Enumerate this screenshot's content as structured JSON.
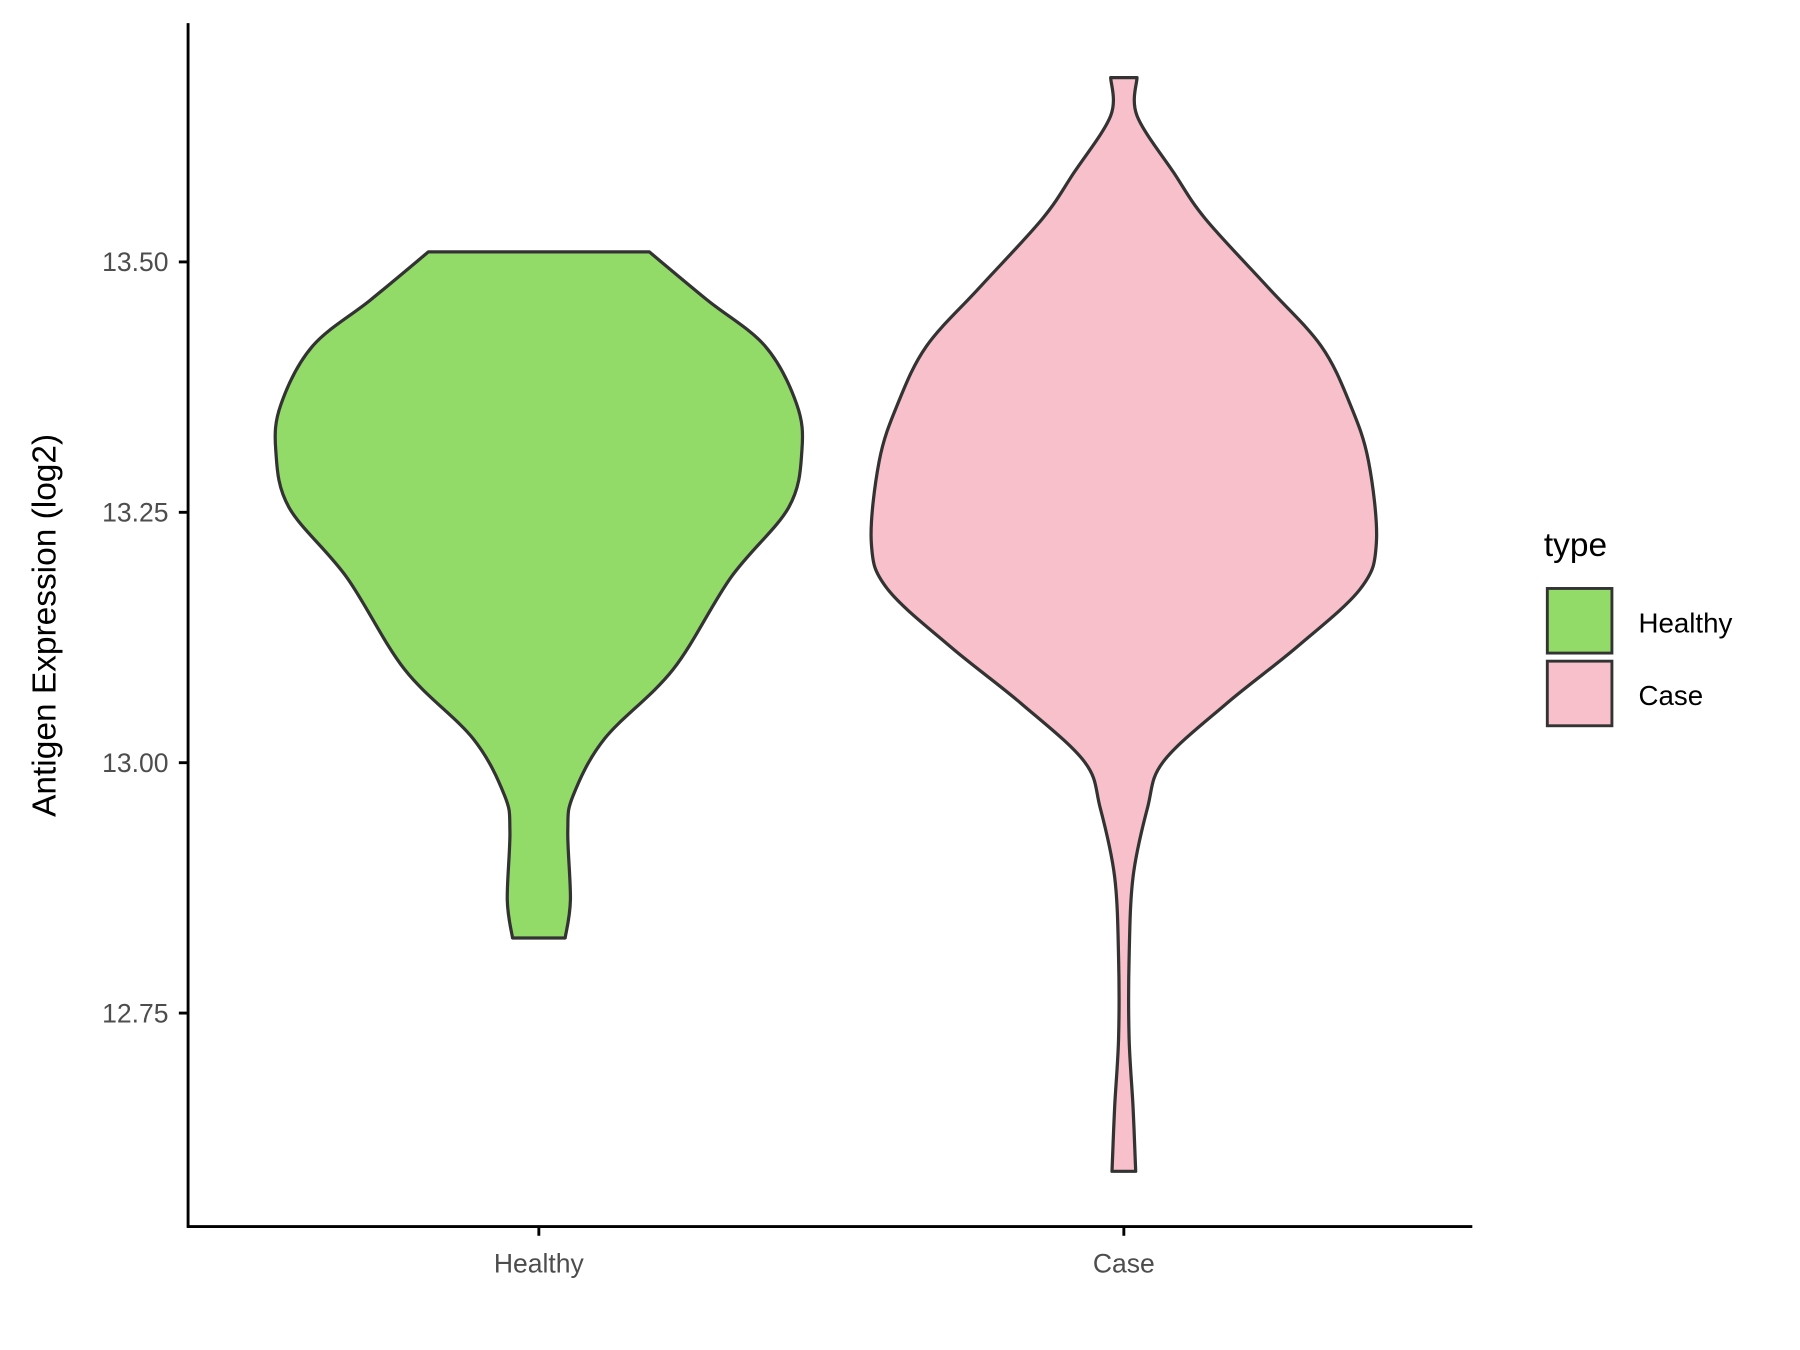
{
  "chart_data": {
    "type": "violin",
    "title": "",
    "xlabel": "",
    "ylabel": "Antigen Expression (log2)",
    "categories": [
      "Healthy",
      "Case"
    ],
    "yticks": [
      12.75,
      13.0,
      13.25,
      13.5
    ],
    "ytick_labels": [
      "12.75",
      "13.00",
      "13.25",
      "13.50"
    ],
    "ylim": [
      12.56,
      13.73
    ],
    "grid": false,
    "legend": {
      "title": "type",
      "position": "right",
      "entries": [
        "Healthy",
        "Case"
      ]
    },
    "series": [
      {
        "name": "Healthy",
        "color": "#93DB69",
        "min": 12.825,
        "max": 13.51,
        "density_profile": [
          [
            13.51,
            0.42
          ],
          [
            13.462,
            0.64
          ],
          [
            13.416,
            0.86
          ],
          [
            13.358,
            0.98
          ],
          [
            13.312,
            1.0
          ],
          [
            13.255,
            0.95
          ],
          [
            13.185,
            0.73
          ],
          [
            13.093,
            0.51
          ],
          [
            13.024,
            0.25
          ],
          [
            12.967,
            0.13
          ],
          [
            12.932,
            0.11
          ],
          [
            12.863,
            0.12
          ],
          [
            12.825,
            0.1
          ]
        ]
      },
      {
        "name": "Case",
        "color": "#F7C0CB",
        "min": 12.592,
        "max": 13.684,
        "density_profile": [
          [
            13.684,
            0.05
          ],
          [
            13.646,
            0.05
          ],
          [
            13.589,
            0.19
          ],
          [
            13.543,
            0.31
          ],
          [
            13.474,
            0.55
          ],
          [
            13.416,
            0.75
          ],
          [
            13.358,
            0.86
          ],
          [
            13.301,
            0.93
          ],
          [
            13.22,
            0.96
          ],
          [
            13.174,
            0.9
          ],
          [
            13.116,
            0.66
          ],
          [
            13.059,
            0.39
          ],
          [
            13.001,
            0.15
          ],
          [
            12.955,
            0.09
          ],
          [
            12.886,
            0.035
          ],
          [
            12.805,
            0.02
          ],
          [
            12.725,
            0.02
          ],
          [
            12.656,
            0.035
          ],
          [
            12.592,
            0.045
          ]
        ]
      }
    ]
  },
  "colors": {
    "outline": "#333333",
    "axis": "#000000"
  }
}
